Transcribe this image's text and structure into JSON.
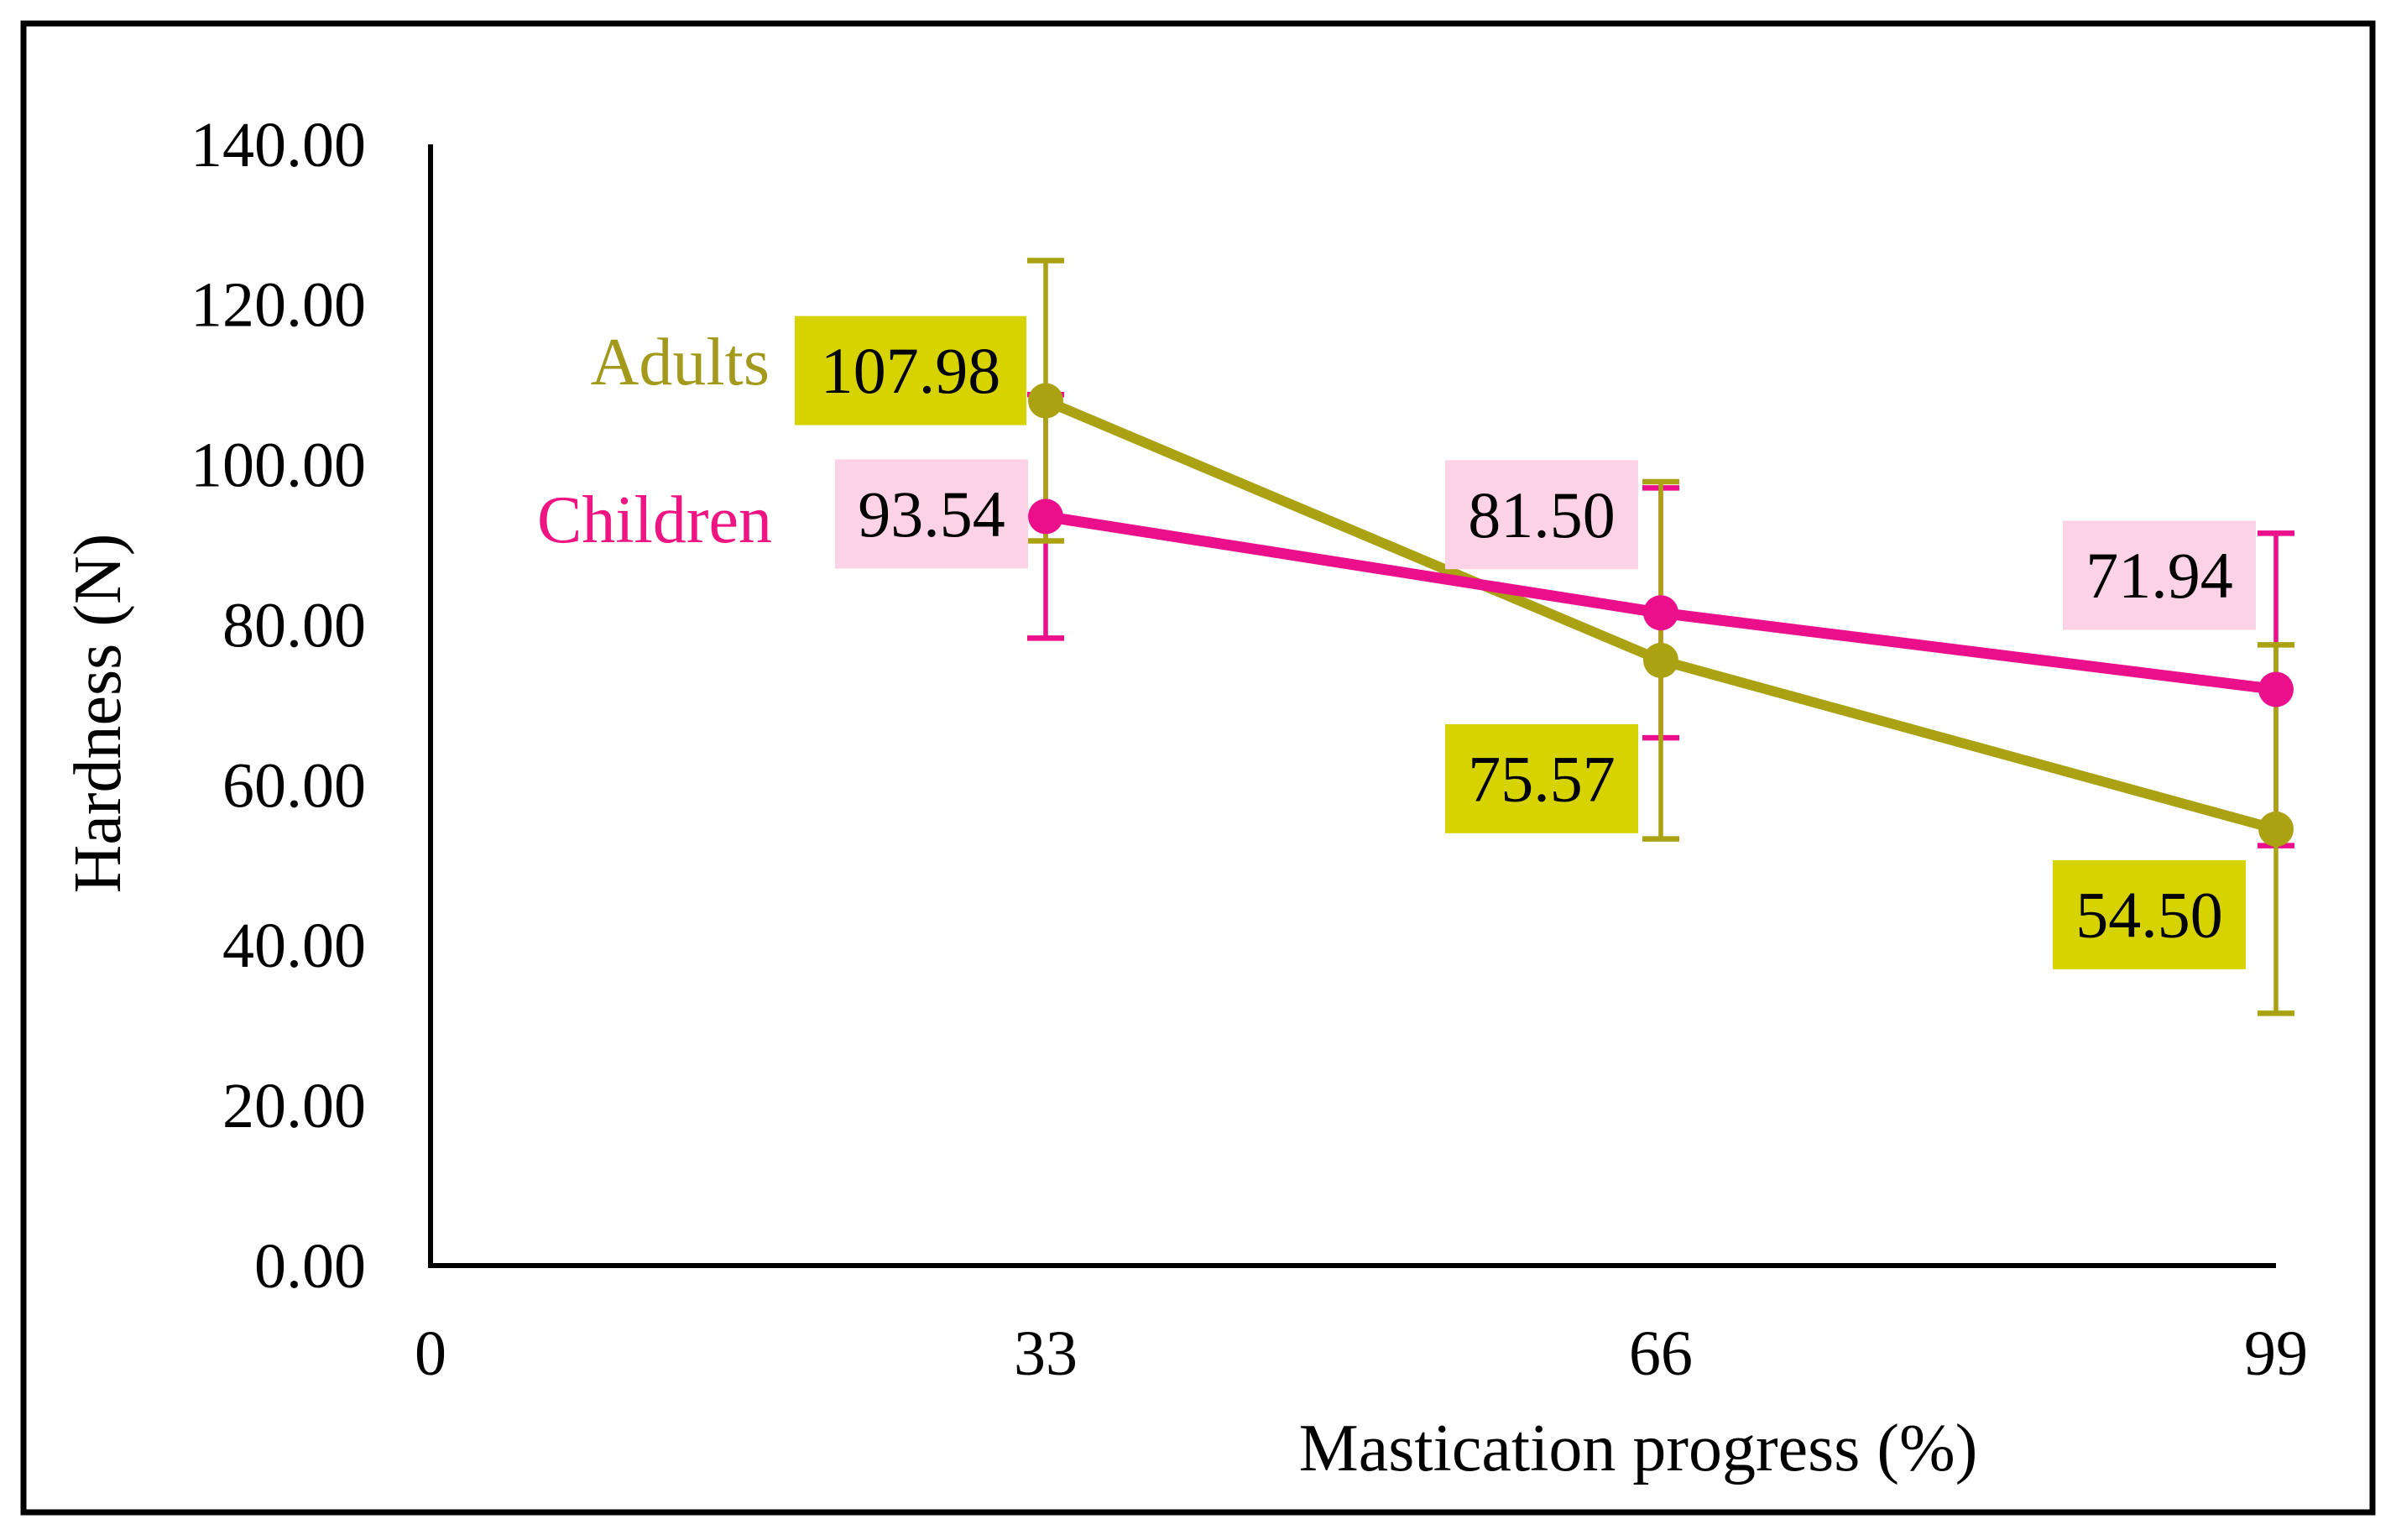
{
  "figure": {
    "background": "#ffffff",
    "border_color": "#000000",
    "axis_color": "#000000",
    "tick_text_color": "#000000",
    "data_label_text_color": "#000000"
  },
  "chart_data": {
    "type": "line",
    "title": "",
    "xlabel": "Mastication progress (%)",
    "ylabel": "Hardness (N)",
    "xlim": [
      0,
      99
    ],
    "ylim": [
      0,
      140
    ],
    "grid": false,
    "legend_position": "inside-left-of-first-points",
    "x_ticks": [
      {
        "v": 0,
        "label": "0"
      },
      {
        "v": 33,
        "label": "33"
      },
      {
        "v": 66,
        "label": "66"
      },
      {
        "v": 99,
        "label": "99"
      }
    ],
    "y_ticks": [
      {
        "v": 0,
        "label": "0.00"
      },
      {
        "v": 20,
        "label": "20.00"
      },
      {
        "v": 40,
        "label": "40.00"
      },
      {
        "v": 60,
        "label": "60.00"
      },
      {
        "v": 80,
        "label": "80.00"
      },
      {
        "v": 100,
        "label": "100.00"
      },
      {
        "v": 120,
        "label": "120.00"
      },
      {
        "v": 140,
        "label": "140.00"
      }
    ],
    "x": [
      33,
      66,
      99
    ],
    "series": [
      {
        "name": "Adults",
        "line_color": "#aaa212",
        "marker_color": "#aaa212",
        "legend_text_color": "#a39a1d",
        "label_bg": "#d6d300",
        "values": [
          107.98,
          75.57,
          54.5
        ],
        "data_labels": [
          "107.98",
          "75.57",
          "54.50"
        ],
        "err_plus": [
          17.5,
          22.3,
          23.0
        ],
        "err_minus": [
          17.5,
          22.3,
          23.0
        ]
      },
      {
        "name": "Children",
        "line_color": "#ec0f8b",
        "marker_color": "#ec0f8b",
        "legend_text_color": "#ee1583",
        "label_bg": "#fbd2e6",
        "values": [
          93.54,
          81.5,
          71.94
        ],
        "data_labels": [
          "93.54",
          "81.50",
          "71.94"
        ],
        "err_plus": [
          15.2,
          15.6,
          19.5
        ],
        "err_minus": [
          15.2,
          15.6,
          19.5
        ]
      }
    ]
  }
}
